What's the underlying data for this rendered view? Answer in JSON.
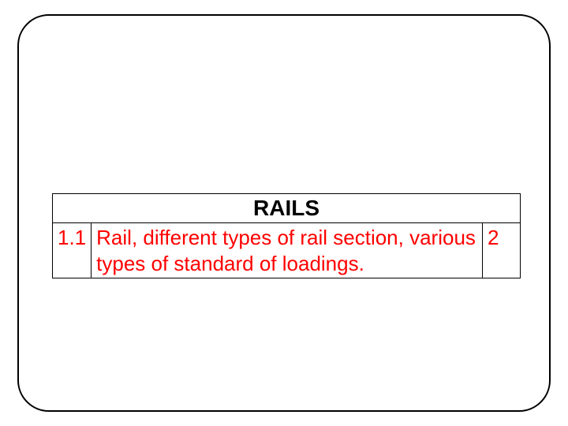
{
  "slide": {
    "frame": {
      "border_color": "#000000",
      "border_width": 2,
      "border_radius": 40,
      "background": "#ffffff"
    },
    "table": {
      "type": "table",
      "border_color": "#000000",
      "header": {
        "text": "RAILS",
        "color": "#000000",
        "font_weight": "bold",
        "font_size": 28
      },
      "rows": [
        {
          "index": "1.1",
          "description": "Rail, different types of rail section, various types of standard of loadings.",
          "count": "2"
        }
      ],
      "body_text_color": "#ff0000",
      "body_font_size": 26,
      "columns": [
        {
          "name": "index",
          "width": 48,
          "align": "left"
        },
        {
          "name": "description",
          "align": "left"
        },
        {
          "name": "count",
          "width": 48,
          "align": "left"
        }
      ]
    }
  }
}
